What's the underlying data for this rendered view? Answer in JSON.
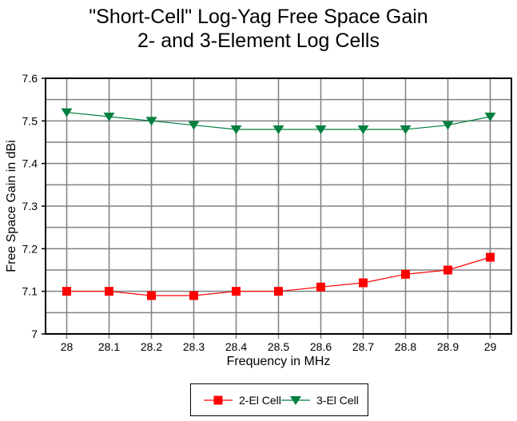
{
  "chart_data": {
    "type": "line",
    "title": [
      "\"Short-Cell\" Log-Yag Free Space Gain",
      "2- and 3-Element Log Cells"
    ],
    "xlabel": "Frequency in MHz",
    "ylabel": "Free Space Gain in dBi",
    "categories": [
      "28",
      "28.1",
      "28.2",
      "28.3",
      "28.4",
      "28.5",
      "28.6",
      "28.7",
      "28.8",
      "28.9",
      "29"
    ],
    "ylim": [
      7.0,
      7.6
    ],
    "yticks": [
      "7",
      "7.1",
      "7.2",
      "7.3",
      "7.4",
      "7.5",
      "7.6"
    ],
    "grid": true,
    "legend_position": "bottom",
    "series": [
      {
        "name": "2-El Cell",
        "color": "#ff0000",
        "marker": "square",
        "values": [
          7.1,
          7.1,
          7.09,
          7.09,
          7.1,
          7.1,
          7.11,
          7.12,
          7.14,
          7.15,
          7.18
        ]
      },
      {
        "name": "3-El Cell",
        "color": "#008040",
        "marker": "triangle-down",
        "values": [
          7.52,
          7.51,
          7.5,
          7.49,
          7.48,
          7.48,
          7.48,
          7.48,
          7.48,
          7.49,
          7.51
        ]
      }
    ]
  }
}
